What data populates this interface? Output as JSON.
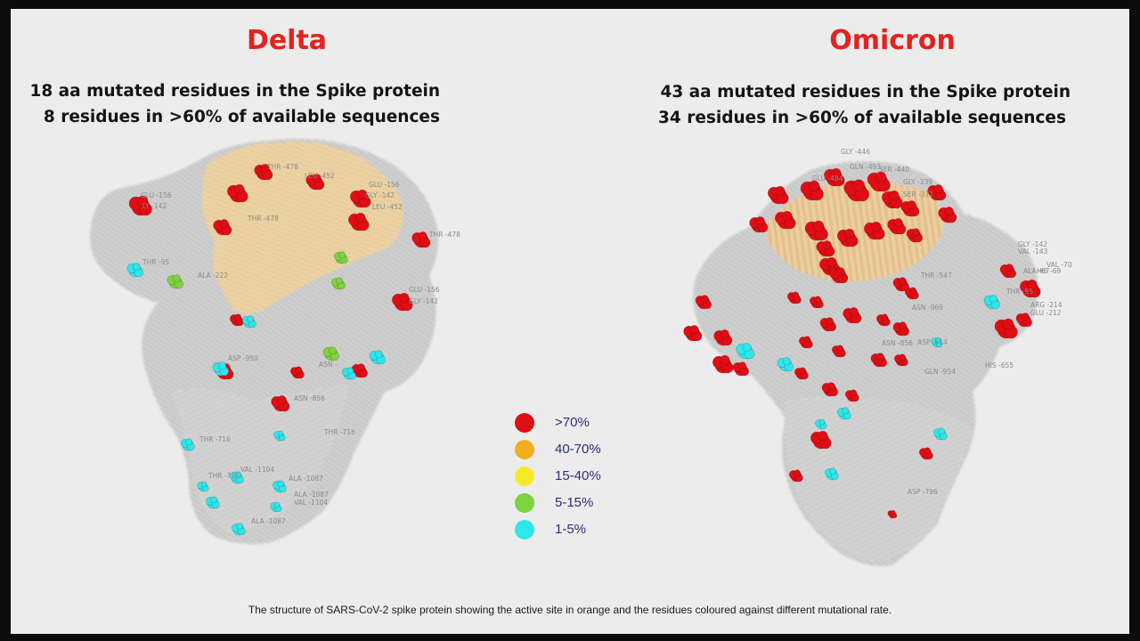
{
  "slide": {
    "panels": [
      {
        "id": "delta",
        "title": "Delta",
        "subtitle_line1": "18 aa mutated residues in the Spike protein",
        "subtitle_line2": "8 residues in >60% of available sequences",
        "residue_labels": [
          "GLU -156",
          "LY -142",
          "THR -478",
          "LEU -452",
          "THR -478",
          "GLU -156",
          "GLY -142",
          "LEU -452",
          "THR -478",
          "THR -95",
          "ALA -222",
          "GLU -156",
          "GLY -142",
          "ASP -950",
          "ASN -",
          "ASN -856",
          "THR -716",
          "THR -716",
          "VAL -1104",
          "ALA -1087",
          "THR -716",
          "ALA -1087",
          "VAL -1104",
          "ALA -1087"
        ]
      },
      {
        "id": "omicron",
        "title": "Omicron",
        "subtitle_line1": "43 aa mutated residues in the Spike protein",
        "subtitle_line2": "34 residues in >60% of available sequences",
        "residue_labels": [
          "GLY -446",
          "GLN -493",
          "GLU -484",
          "SER -440",
          "GLY -339",
          "SER -371",
          "THR -547",
          "GLY -142",
          "VAL -143",
          "VAL -70",
          "ALA -67",
          "HIS -69",
          "THR -95",
          "ARG -214",
          "GLU -212",
          "ASN -969",
          "ASN -856",
          "ASP -614",
          "GLN -954",
          "HIS -655",
          "ASP -796"
        ]
      }
    ],
    "legend": [
      {
        "label": ">70%",
        "color": "#e00d14"
      },
      {
        "label": "40-70%",
        "color": "#f2b020"
      },
      {
        "label": "15-40%",
        "color": "#f5ea2a"
      },
      {
        "label": "5-15%",
        "color": "#7ed23e"
      },
      {
        "label": "1-5%",
        "color": "#2fe6ea"
      }
    ],
    "caption": "The structure of SARS-CoV-2 spike protein showing the active site in orange and the residues coloured against different mutational rate."
  }
}
